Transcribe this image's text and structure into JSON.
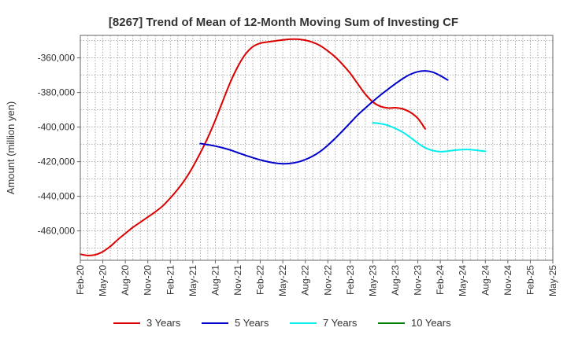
{
  "chart_data": {
    "type": "line",
    "title": "[8267]  Trend of Mean of 12-Month Moving Sum of Investing CF",
    "xlabel": "",
    "ylabel": "Amount (million yen)",
    "categories": [
      "Feb-20",
      "May-20",
      "Aug-20",
      "Nov-20",
      "Feb-21",
      "May-21",
      "Aug-21",
      "Nov-21",
      "Feb-22",
      "May-22",
      "Aug-22",
      "Nov-22",
      "Feb-23",
      "May-23",
      "Aug-23",
      "Nov-23",
      "Feb-24",
      "May-24",
      "Aug-24",
      "Nov-24",
      "Feb-25",
      "May-25"
    ],
    "yticks": [
      -360000,
      -380000,
      -400000,
      -420000,
      -440000,
      -460000
    ],
    "ytick_labels": [
      "-360,000",
      "-380,000",
      "-400,000",
      "-420,000",
      "-440,000",
      "-460,000"
    ],
    "ylim": [
      -477000,
      -347000
    ],
    "grid": true,
    "legend_position": "bottom",
    "series": [
      {
        "name": "3 Years",
        "color": "#dd0000",
        "points": [
          [
            0,
            -473500
          ],
          [
            0.33,
            -474200
          ],
          [
            0.67,
            -473800
          ],
          [
            1,
            -472000
          ],
          [
            1.33,
            -469000
          ],
          [
            1.67,
            -465000
          ],
          [
            2,
            -461500
          ],
          [
            2.33,
            -458000
          ],
          [
            2.67,
            -455000
          ],
          [
            3,
            -452000
          ],
          [
            3.33,
            -449000
          ],
          [
            3.67,
            -445500
          ],
          [
            4,
            -441000
          ],
          [
            4.33,
            -436000
          ],
          [
            4.67,
            -430000
          ],
          [
            5,
            -423000
          ],
          [
            5.33,
            -415000
          ],
          [
            5.67,
            -406000
          ],
          [
            6,
            -396000
          ],
          [
            6.33,
            -385000
          ],
          [
            6.67,
            -374000
          ],
          [
            7,
            -365000
          ],
          [
            7.33,
            -358000
          ],
          [
            7.67,
            -353500
          ],
          [
            8,
            -351500
          ],
          [
            8.33,
            -350800
          ],
          [
            8.67,
            -350200
          ],
          [
            9,
            -349600
          ],
          [
            9.33,
            -349200
          ],
          [
            9.67,
            -349200
          ],
          [
            10,
            -349800
          ],
          [
            10.33,
            -351000
          ],
          [
            10.67,
            -353000
          ],
          [
            11,
            -356000
          ],
          [
            11.33,
            -359500
          ],
          [
            11.67,
            -364000
          ],
          [
            12,
            -369000
          ],
          [
            12.33,
            -375000
          ],
          [
            12.67,
            -381000
          ],
          [
            13,
            -385500
          ],
          [
            13.33,
            -388000
          ],
          [
            13.67,
            -389000
          ],
          [
            14,
            -388800
          ],
          [
            14.33,
            -389500
          ],
          [
            14.67,
            -391500
          ],
          [
            15,
            -395000
          ],
          [
            15.33,
            -401000
          ]
        ]
      },
      {
        "name": "5 Years",
        "color": "#0000cc",
        "points": [
          [
            5.33,
            -409500
          ],
          [
            5.67,
            -410200
          ],
          [
            6,
            -411000
          ],
          [
            6.33,
            -412000
          ],
          [
            6.67,
            -413300
          ],
          [
            7,
            -414800
          ],
          [
            7.33,
            -416300
          ],
          [
            7.67,
            -417700
          ],
          [
            8,
            -419000
          ],
          [
            8.33,
            -420000
          ],
          [
            8.67,
            -420800
          ],
          [
            9,
            -421200
          ],
          [
            9.33,
            -421000
          ],
          [
            9.67,
            -420200
          ],
          [
            10,
            -418800
          ],
          [
            10.33,
            -416800
          ],
          [
            10.67,
            -414000
          ],
          [
            11,
            -410500
          ],
          [
            11.33,
            -406500
          ],
          [
            11.67,
            -402000
          ],
          [
            12,
            -397500
          ],
          [
            12.33,
            -393000
          ],
          [
            12.67,
            -389000
          ],
          [
            13,
            -385200
          ],
          [
            13.33,
            -381600
          ],
          [
            13.67,
            -378200
          ],
          [
            14,
            -375000
          ],
          [
            14.33,
            -372000
          ],
          [
            14.67,
            -369500
          ],
          [
            15,
            -368000
          ],
          [
            15.33,
            -367500
          ],
          [
            15.67,
            -368300
          ],
          [
            16,
            -370300
          ],
          [
            16.33,
            -372800
          ]
        ]
      },
      {
        "name": "7 Years",
        "color": "#00eeee",
        "points": [
          [
            13,
            -397500
          ],
          [
            13.33,
            -398000
          ],
          [
            13.67,
            -399000
          ],
          [
            14,
            -400800
          ],
          [
            14.33,
            -403000
          ],
          [
            14.67,
            -406000
          ],
          [
            15,
            -409300
          ],
          [
            15.33,
            -412000
          ],
          [
            15.67,
            -413600
          ],
          [
            16,
            -414200
          ],
          [
            16.33,
            -413900
          ],
          [
            16.67,
            -413300
          ],
          [
            17,
            -413000
          ],
          [
            17.33,
            -413000
          ],
          [
            17.67,
            -413500
          ],
          [
            18,
            -414000
          ]
        ]
      },
      {
        "name": "10 Years",
        "color": "#008000",
        "points": []
      }
    ]
  }
}
